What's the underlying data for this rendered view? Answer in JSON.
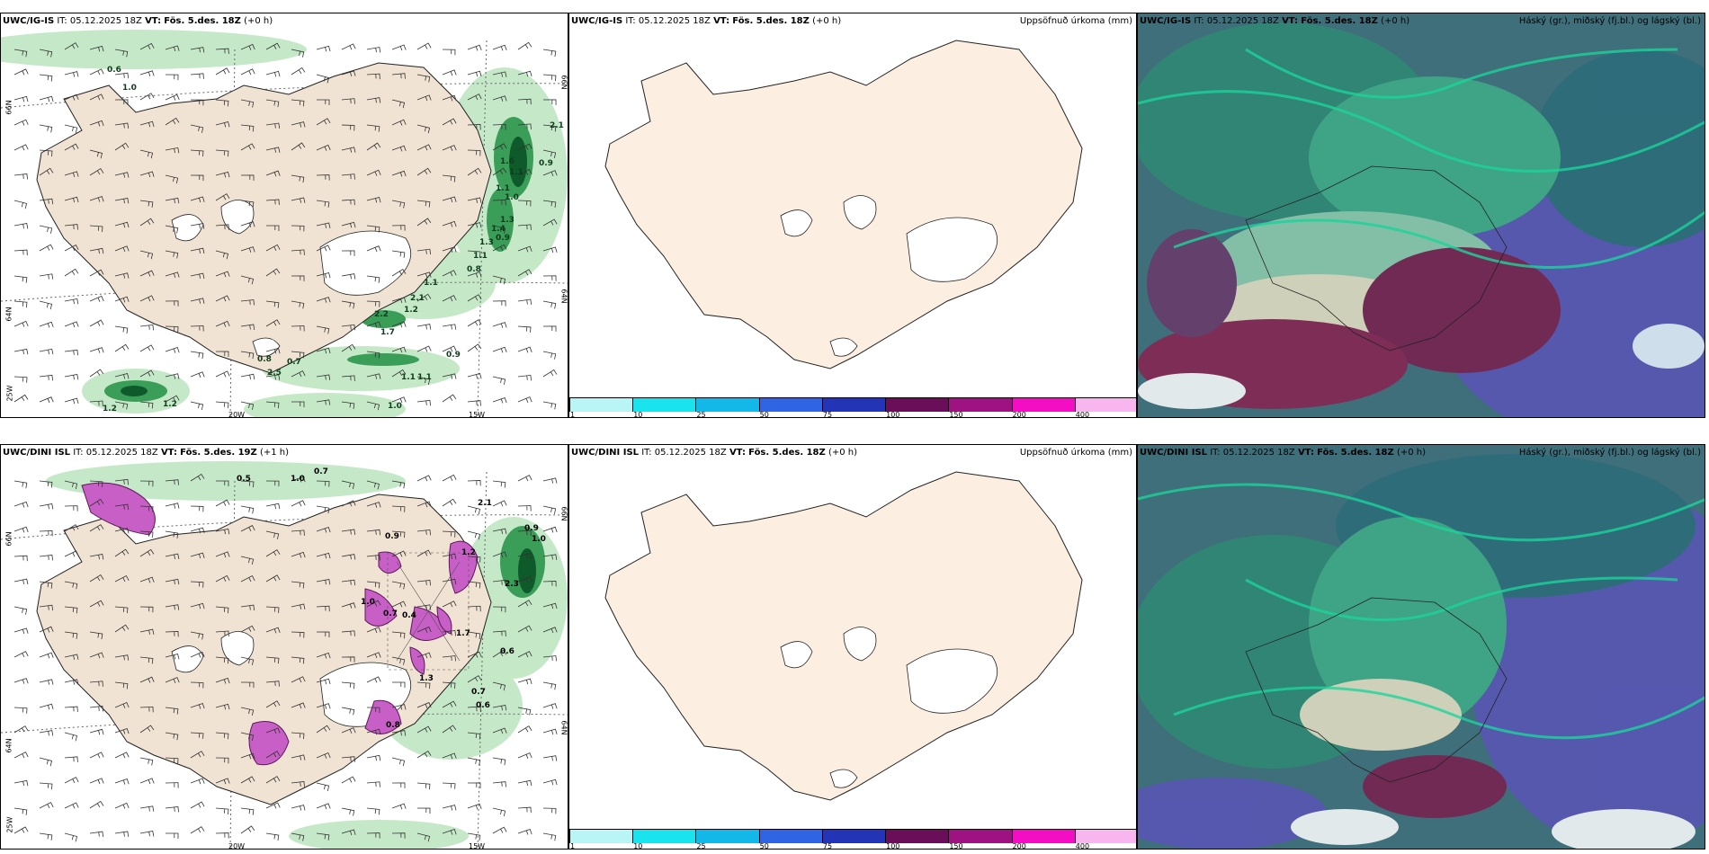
{
  "panels": [
    {
      "model": "UWC/IG-IS",
      "it": "IT: 05.12.2025 18Z",
      "vt_label": "VT:",
      "vt": "Fös. 5.des. 18Z",
      "lead": "(+0 h)",
      "right": "",
      "lon_labels": [
        "20W",
        "15W"
      ],
      "lat_labels": [
        "66N",
        "64N",
        "25W",
        "66N",
        "64N"
      ],
      "values": [
        "0.6",
        "1.0",
        "2.1",
        "0.9",
        "1.6",
        "1.1",
        "1.1",
        "1.0",
        "1.3",
        "1.4",
        "1.3",
        "0.9",
        "1.1",
        "0.8",
        "1.1",
        "2.1",
        "1.2",
        "2.2",
        "1.7",
        "0.9",
        "0.8",
        "0.7",
        "2.5",
        "1.1",
        "1.1",
        "1.2",
        "1.2",
        "1.0"
      ]
    },
    {
      "model": "UWC/IG-IS",
      "it": "IT: 05.12.2025 18Z",
      "vt_label": "VT:",
      "vt": "Fös. 5.des. 18Z",
      "lead": "(+0 h)",
      "right": "Uppsöfnuð úrkoma (mm)"
    },
    {
      "model": "UWC/IG-IS",
      "it": "IT: 05.12.2025 18Z",
      "vt_label": "VT:",
      "vt": "Fös. 5.des. 18Z",
      "lead": "(+0 h)",
      "right": "Háský (gr.), miðský (fj.bl.) og lágský (bl.)"
    },
    {
      "model": "UWC/DINI ISL",
      "it": "IT: 05.12.2025 18Z",
      "vt_label": "VT:",
      "vt": "Fös. 5.des. 19Z",
      "lead": "(+1 h)",
      "right": "",
      "lon_labels": [
        "20W",
        "15W"
      ],
      "lat_labels": [
        "66N",
        "64N",
        "25W",
        "66N",
        "64N"
      ],
      "values": [
        "0.5",
        "1.0",
        "0.7",
        "0.9",
        "1.0",
        "2.1",
        "1.2",
        "0.9",
        "1.0",
        "2.3",
        "0.7",
        "0.4",
        "1.7",
        "0.6",
        "0.7",
        "0.6",
        "1.3",
        "0.8"
      ]
    },
    {
      "model": "UWC/DINI ISL",
      "it": "IT: 05.12.2025 18Z",
      "vt_label": "VT:",
      "vt": "Fös. 5.des. 18Z",
      "lead": "(+0 h)",
      "right": "Uppsöfnuð úrkoma (mm)"
    },
    {
      "model": "UWC/DINI ISL",
      "it": "IT: 05.12.2025 18Z",
      "vt_label": "VT:",
      "vt": "Fös. 5.des. 18Z",
      "lead": "(+0 h)",
      "right": "Háský (gr.), miðský (fj.bl.) og lágský (bl.)"
    }
  ],
  "precip_scale": {
    "labels": [
      "1",
      "10",
      "25",
      "50",
      "75",
      "100",
      "150",
      "200",
      "400"
    ],
    "colors": [
      "#b9f4f7",
      "#19e4ee",
      "#13b8e8",
      "#2f64e5",
      "#2434b6",
      "#6b0e5a",
      "#9e1281",
      "#f30ec4",
      "#f7b6ee"
    ]
  },
  "colors": {
    "land": "#f0e3d3",
    "land_plain": "#fcefe1",
    "precip_green": "#3a9d58",
    "precip_magenta": "#c85fc6"
  }
}
